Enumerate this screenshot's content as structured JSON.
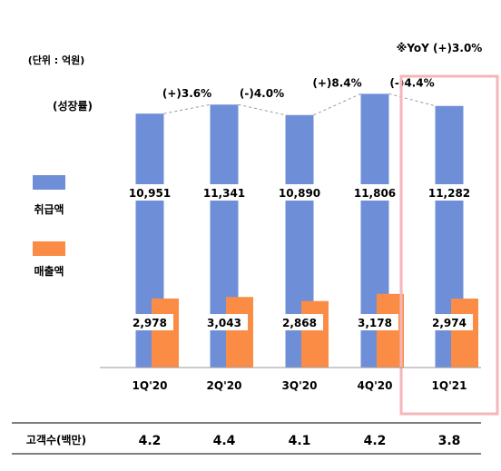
{
  "unit_note": "(단위 : 억원)",
  "growth_heading": "(성장률)",
  "yoy_note": "※YoY (+)3.0%",
  "legend": [
    {
      "label": "취급액",
      "color": "#6e8fd8"
    },
    {
      "label": "매출액",
      "color": "#fb8c45"
    }
  ],
  "chart_data": {
    "type": "bar",
    "categories": [
      "1Q'20",
      "2Q'20",
      "3Q'20",
      "4Q'20",
      "1Q'21"
    ],
    "series": [
      {
        "name": "취급액",
        "values": [
          10951,
          11341,
          10890,
          11806,
          11282
        ],
        "color": "#6e8fd8"
      },
      {
        "name": "매출액",
        "values": [
          2978,
          3043,
          2868,
          3178,
          2974
        ],
        "color": "#fb8c45"
      }
    ],
    "value_labels": {
      "취급액": [
        "10,951",
        "11,341",
        "10,890",
        "11,806",
        "11,282"
      ],
      "매출액": [
        "2,978",
        "3,043",
        "2,868",
        "3,178",
        "2,974"
      ]
    },
    "growth_labels": [
      "(+)3.6%",
      "(-)4.0%",
      "(+)8.4%",
      "(-)4.4%"
    ],
    "highlight_category": "1Q'21",
    "highlight_color": "#f4b6b8",
    "ylim": [
      0,
      12000
    ],
    "grid": false
  },
  "customer_row": {
    "label": "고객수(백만)",
    "values": [
      "4.2",
      "4.4",
      "4.1",
      "4.2",
      "3.8"
    ]
  }
}
